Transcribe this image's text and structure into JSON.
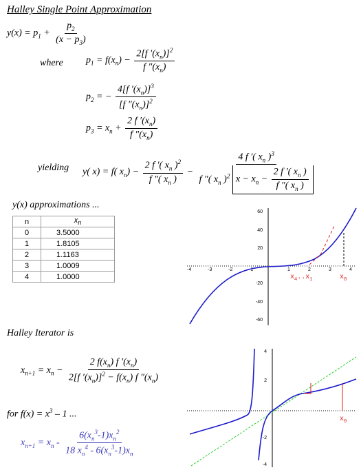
{
  "title": "Halley Single Point Approximation",
  "eq_y": {
    "lhs": "y(x) = p",
    "plus": " + ",
    "num": "p",
    "den": "(x − p",
    "den_close": ")"
  },
  "words": {
    "where": "where",
    "yielding": "yielding"
  },
  "approx": {
    "heading": "y(x) approximations ...",
    "columns": [
      "n",
      "x"
    ],
    "rows": [
      {
        "n": "0",
        "x": "3.5000"
      },
      {
        "n": "1",
        "x": "1.8105"
      },
      {
        "n": "2",
        "x": "1.1163"
      },
      {
        "n": "3",
        "x": "1.0009"
      },
      {
        "n": "4",
        "x": "1.0000"
      }
    ]
  },
  "iterator": {
    "heading": "Halley Iterator is",
    "for_text": "for  f(x) = x",
    "for_tail": " – 1 ..."
  },
  "plot_top": {
    "y_ticks": [
      "60",
      "40",
      "20",
      "-20",
      "-40",
      "-60"
    ],
    "x_ticks": [
      "-4",
      "-3",
      "-2",
      "-1",
      "1",
      "2",
      "3",
      "4"
    ],
    "labels": {
      "x4": "x",
      "x4_sub": "4",
      "dots": "..",
      "x1": "x",
      "x1_sub": "1",
      "x0": "x",
      "x0_sub": "0"
    }
  },
  "plot_bottom": {
    "y_ticks": [
      "4",
      "2",
      "-2",
      "-4"
    ],
    "labels": {
      "x0": "x",
      "x0_sub": "0"
    }
  },
  "colors": {
    "curve": "#1a1acc",
    "tangent": "#dd2222",
    "diag": "#22cc22",
    "formula": "#3a3ab8"
  }
}
